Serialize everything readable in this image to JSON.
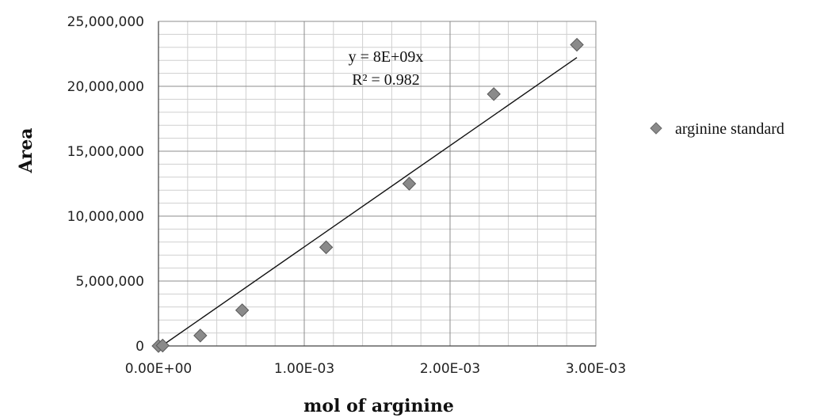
{
  "chart_data": {
    "type": "scatter",
    "xlabel": "mol of arginine",
    "ylabel": "Area",
    "xlim": [
      0,
      0.003
    ],
    "ylim": [
      0,
      25000000
    ],
    "x_ticks": [
      0,
      0.001,
      0.002,
      0.003
    ],
    "x_tick_labels": [
      "0.00E+00",
      "1.00E-03",
      "2.00E-03",
      "3.00E-03"
    ],
    "y_ticks": [
      0,
      5000000,
      10000000,
      15000000,
      20000000,
      25000000
    ],
    "y_tick_labels": [
      "0",
      "5,000,000",
      "10,000,000",
      "15,000,000",
      "20,000,000",
      "25,000,000"
    ],
    "grid": true,
    "minor_grid": true,
    "legend_position": "right",
    "series": [
      {
        "name": "arginine standard",
        "color": "#8a8a8a",
        "marker": "diamond",
        "x": [
          0.0,
          2.87e-05,
          0.000287,
          0.000574,
          0.00115,
          0.00172,
          0.0023,
          0.00287
        ],
        "y": [
          0,
          30000,
          800000,
          2750000,
          7600000,
          12500000,
          19400000,
          23200000
        ]
      }
    ],
    "trendline": {
      "type": "linear",
      "slope": 7800000000.0,
      "intercept": -170000,
      "x_range": [
        2.87e-05,
        0.00287
      ],
      "color": "#111111",
      "equation": "y = 8E+09x",
      "r_squared": "R² = 0.982"
    }
  }
}
